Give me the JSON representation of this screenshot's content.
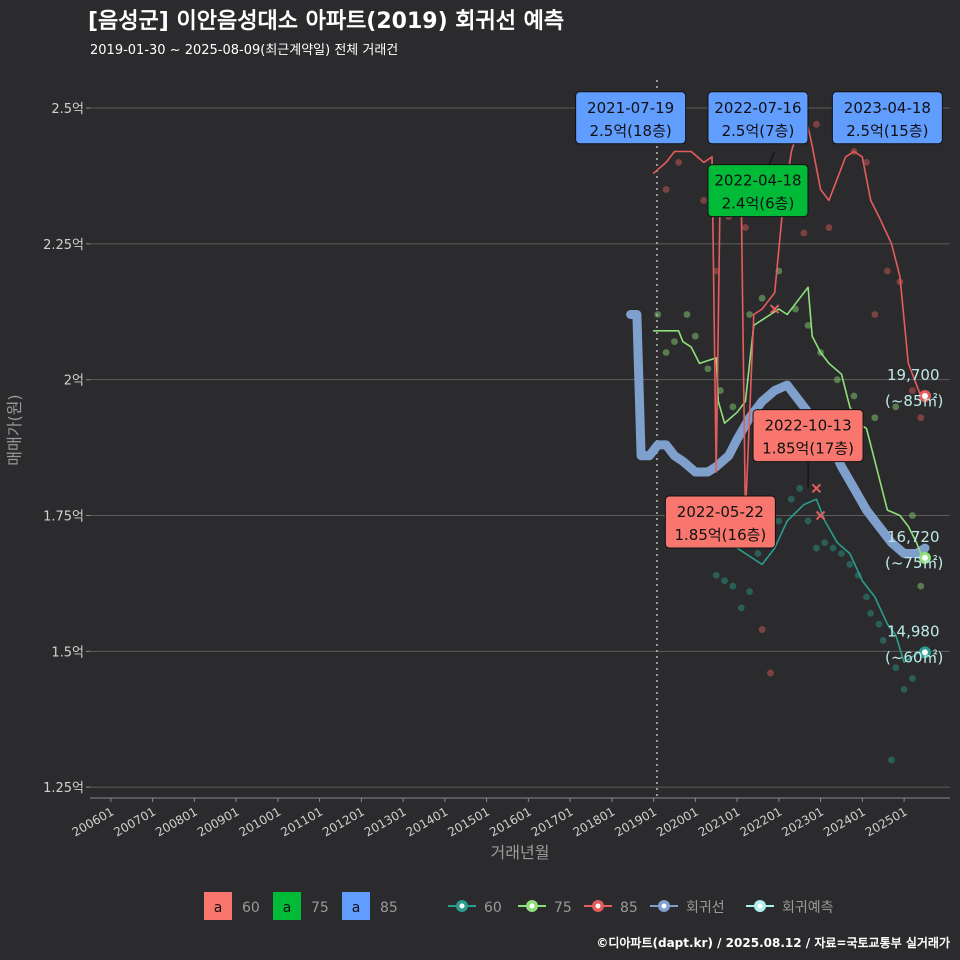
{
  "chart_data": {
    "type": "line",
    "title": "[음성군] 이안음성대소 아파트(2019) 회귀선 예측",
    "subtitle": "2019-01-30 ~ 2025-08-09(최근계약일) 전체 거래건",
    "xlabel": "거래년월",
    "ylabel": "매매가(원)",
    "x_ticks": [
      "200601",
      "200701",
      "200801",
      "200901",
      "201001",
      "201101",
      "201201",
      "201301",
      "201401",
      "201501",
      "201601",
      "201701",
      "201801",
      "201901",
      "202001",
      "202101",
      "202201",
      "202301",
      "202401",
      "202501"
    ],
    "y_ticks": [
      {
        "value": 1.25,
        "label": "1.25억"
      },
      {
        "value": 1.5,
        "label": "1.5억"
      },
      {
        "value": 1.75,
        "label": "1.75억"
      },
      {
        "value": 2.0,
        "label": "2억"
      },
      {
        "value": 2.25,
        "label": "2.25억"
      },
      {
        "value": 2.5,
        "label": "2.5억"
      }
    ],
    "ylim": [
      1.23,
      2.57
    ],
    "xlim": [
      2005.5,
      2026.1
    ],
    "vline_x": 2019.08,
    "series": [
      {
        "name": "60",
        "color": "#2a9d8f",
        "points": [
          [
            2019.9,
            1.72
          ],
          [
            2020.3,
            1.72
          ],
          [
            2020.6,
            1.7
          ],
          [
            2021.0,
            1.69
          ],
          [
            2021.4,
            1.67
          ],
          [
            2021.6,
            1.66
          ],
          [
            2021.9,
            1.69
          ],
          [
            2022.2,
            1.74
          ],
          [
            2022.6,
            1.77
          ],
          [
            2022.9,
            1.78
          ],
          [
            2023.1,
            1.74
          ],
          [
            2023.4,
            1.7
          ],
          [
            2023.7,
            1.68
          ],
          [
            2024.0,
            1.63
          ],
          [
            2024.3,
            1.6
          ],
          [
            2024.6,
            1.55
          ],
          [
            2024.8,
            1.53
          ],
          [
            2025.0,
            1.48
          ],
          [
            2025.2,
            1.49
          ],
          [
            2025.4,
            1.5
          ]
        ]
      },
      {
        "name": "75",
        "color": "#8ee07a",
        "points": [
          [
            2019.0,
            2.09
          ],
          [
            2019.6,
            2.09
          ],
          [
            2019.7,
            2.07
          ],
          [
            2019.9,
            2.06
          ],
          [
            2020.1,
            2.03
          ],
          [
            2020.5,
            2.04
          ],
          [
            2020.55,
            1.96
          ],
          [
            2020.7,
            1.92
          ],
          [
            2021.0,
            1.94
          ],
          [
            2021.2,
            1.96
          ],
          [
            2021.4,
            2.1
          ],
          [
            2021.8,
            2.12
          ],
          [
            2022.0,
            2.13
          ],
          [
            2022.2,
            2.12
          ],
          [
            2022.5,
            2.15
          ],
          [
            2022.7,
            2.17
          ],
          [
            2022.8,
            2.08
          ],
          [
            2023.0,
            2.05
          ],
          [
            2023.2,
            2.03
          ],
          [
            2023.5,
            2.01
          ],
          [
            2023.7,
            1.95
          ],
          [
            2023.9,
            1.92
          ],
          [
            2024.1,
            1.91
          ],
          [
            2024.3,
            1.85
          ],
          [
            2024.6,
            1.76
          ],
          [
            2024.9,
            1.75
          ],
          [
            2025.1,
            1.73
          ],
          [
            2025.3,
            1.7
          ],
          [
            2025.45,
            1.67
          ]
        ]
      },
      {
        "name": "85",
        "color": "#e35d5d",
        "points": [
          [
            2019.0,
            2.38
          ],
          [
            2019.3,
            2.4
          ],
          [
            2019.5,
            2.42
          ],
          [
            2019.9,
            2.42
          ],
          [
            2020.2,
            2.4
          ],
          [
            2020.4,
            2.41
          ],
          [
            2020.5,
            1.83
          ],
          [
            2020.6,
            2.38
          ],
          [
            2020.8,
            2.34
          ],
          [
            2021.1,
            2.33
          ],
          [
            2021.2,
            1.75
          ],
          [
            2021.4,
            2.12
          ],
          [
            2021.6,
            2.13
          ],
          [
            2021.9,
            2.16
          ],
          [
            2022.1,
            2.32
          ],
          [
            2022.3,
            2.42
          ],
          [
            2022.5,
            2.47
          ],
          [
            2022.6,
            2.5
          ],
          [
            2022.8,
            2.43
          ],
          [
            2023.0,
            2.35
          ],
          [
            2023.2,
            2.33
          ],
          [
            2023.4,
            2.37
          ],
          [
            2023.6,
            2.41
          ],
          [
            2023.8,
            2.42
          ],
          [
            2024.0,
            2.41
          ],
          [
            2024.2,
            2.33
          ],
          [
            2024.4,
            2.3
          ],
          [
            2024.7,
            2.25
          ],
          [
            2024.9,
            2.19
          ],
          [
            2025.1,
            2.03
          ],
          [
            2025.4,
            1.97
          ]
        ]
      },
      {
        "name": "회귀선",
        "color": "#7fa0cc",
        "points": [
          [
            2018.45,
            2.12
          ],
          [
            2018.6,
            2.12
          ],
          [
            2018.7,
            1.86
          ],
          [
            2018.9,
            1.86
          ],
          [
            2019.1,
            1.88
          ],
          [
            2019.3,
            1.88
          ],
          [
            2019.5,
            1.86
          ],
          [
            2019.7,
            1.85
          ],
          [
            2020.0,
            1.83
          ],
          [
            2020.3,
            1.83
          ],
          [
            2020.5,
            1.84
          ],
          [
            2020.8,
            1.86
          ],
          [
            2021.0,
            1.89
          ],
          [
            2021.3,
            1.93
          ],
          [
            2021.6,
            1.96
          ],
          [
            2021.9,
            1.98
          ],
          [
            2022.2,
            1.99
          ],
          [
            2022.5,
            1.96
          ],
          [
            2022.8,
            1.93
          ],
          [
            2023.2,
            1.89
          ],
          [
            2023.5,
            1.84
          ],
          [
            2023.8,
            1.8
          ],
          [
            2024.1,
            1.76
          ],
          [
            2024.4,
            1.73
          ],
          [
            2024.7,
            1.7
          ],
          [
            2025.0,
            1.68
          ],
          [
            2025.3,
            1.68
          ],
          [
            2025.5,
            1.69
          ]
        ]
      }
    ],
    "scatter": [
      {
        "name": "60",
        "color": "#2a9d8f",
        "points": [
          [
            2019.9,
            1.75
          ],
          [
            2020.2,
            1.72
          ],
          [
            2020.5,
            1.64
          ],
          [
            2020.7,
            1.63
          ],
          [
            2020.9,
            1.62
          ],
          [
            2021.1,
            1.58
          ],
          [
            2021.3,
            1.61
          ],
          [
            2021.5,
            1.68
          ],
          [
            2021.8,
            1.72
          ],
          [
            2022.0,
            1.74
          ],
          [
            2022.3,
            1.78
          ],
          [
            2022.5,
            1.8
          ],
          [
            2022.7,
            1.74
          ],
          [
            2022.9,
            1.69
          ],
          [
            2023.1,
            1.7
          ],
          [
            2023.3,
            1.69
          ],
          [
            2023.5,
            1.68
          ],
          [
            2023.7,
            1.66
          ],
          [
            2023.9,
            1.64
          ],
          [
            2024.1,
            1.6
          ],
          [
            2024.2,
            1.57
          ],
          [
            2024.4,
            1.55
          ],
          [
            2024.5,
            1.52
          ],
          [
            2024.7,
            1.3
          ],
          [
            2024.8,
            1.47
          ],
          [
            2025.0,
            1.43
          ],
          [
            2025.2,
            1.45
          ]
        ]
      },
      {
        "name": "75",
        "color": "#8ee07a",
        "points": [
          [
            2019.1,
            2.12
          ],
          [
            2019.3,
            2.05
          ],
          [
            2019.5,
            2.07
          ],
          [
            2019.8,
            2.12
          ],
          [
            2020.0,
            2.08
          ],
          [
            2020.3,
            2.02
          ],
          [
            2020.6,
            1.98
          ],
          [
            2020.9,
            1.95
          ],
          [
            2021.3,
            2.12
          ],
          [
            2021.6,
            2.15
          ],
          [
            2022.0,
            2.2
          ],
          [
            2022.4,
            2.13
          ],
          [
            2022.7,
            2.1
          ],
          [
            2023.0,
            2.05
          ],
          [
            2023.4,
            2.0
          ],
          [
            2023.8,
            1.97
          ],
          [
            2024.3,
            1.93
          ],
          [
            2024.8,
            1.95
          ],
          [
            2025.2,
            1.75
          ],
          [
            2025.4,
            1.62
          ]
        ]
      },
      {
        "name": "85",
        "color": "#e35d5d",
        "points": [
          [
            2019.3,
            2.35
          ],
          [
            2019.6,
            2.4
          ],
          [
            2020.2,
            2.33
          ],
          [
            2020.5,
            2.2
          ],
          [
            2020.8,
            2.3
          ],
          [
            2021.2,
            2.28
          ],
          [
            2021.6,
            1.54
          ],
          [
            2021.8,
            1.46
          ],
          [
            2022.0,
            2.45
          ],
          [
            2022.3,
            2.35
          ],
          [
            2022.6,
            2.27
          ],
          [
            2022.9,
            2.47
          ],
          [
            2023.2,
            2.28
          ],
          [
            2023.5,
            2.47
          ],
          [
            2023.8,
            2.42
          ],
          [
            2024.1,
            2.4
          ],
          [
            2024.3,
            2.12
          ],
          [
            2024.6,
            2.2
          ],
          [
            2024.9,
            2.18
          ],
          [
            2025.2,
            1.98
          ],
          [
            2025.4,
            1.93
          ]
        ]
      }
    ],
    "end_labels": [
      {
        "series": "85",
        "x": 2025.5,
        "y": 1.97,
        "value": "19,700",
        "area": "(~85㎡)"
      },
      {
        "series": "75",
        "x": 2025.5,
        "y": 1.672,
        "value": "16,720",
        "area": "(~75㎡)"
      },
      {
        "series": "60",
        "x": 2025.5,
        "y": 1.498,
        "value": "14,980",
        "area": "(~60㎡)"
      }
    ],
    "annotations": [
      {
        "date": "2021-07-19",
        "price": "2.5억(18층)",
        "color": "#619cff",
        "x": 2018.45,
        "y": 2.482
      },
      {
        "date": "2022-07-16",
        "price": "2.5억(7층)",
        "color": "#619cff",
        "x": 2021.5,
        "y": 2.482
      },
      {
        "date": "2023-04-18",
        "price": "2.5억(15층)",
        "color": "#619cff",
        "x": 2024.6,
        "y": 2.482
      },
      {
        "date": "2022-04-18",
        "price": "2.4억(6층)",
        "color": "#00ba38",
        "x": 2021.5,
        "y": 2.348
      },
      {
        "date": "2022-10-13",
        "price": "1.85억(17층)",
        "color": "#f8766d",
        "x": 2022.7,
        "y": 1.897
      },
      {
        "date": "2022-05-22",
        "price": "1.85억(16층)",
        "color": "#f8766d",
        "x": 2020.6,
        "y": 1.738
      }
    ],
    "legend_boxes": [
      {
        "label": "60",
        "color": "#f8766d",
        "key": "a"
      },
      {
        "label": "75",
        "color": "#00ba38",
        "key": "a"
      },
      {
        "label": "85",
        "color": "#619cff",
        "key": "a"
      }
    ],
    "legend_lines": [
      {
        "label": "60",
        "color": "#2a9d8f"
      },
      {
        "label": "75",
        "color": "#8ee07a"
      },
      {
        "label": "85",
        "color": "#e35d5d"
      },
      {
        "label": "회귀선",
        "color": "#7fa0cc"
      },
      {
        "label": "회귀예측",
        "color": "#aef0ee"
      }
    ]
  },
  "caption": "©디아파트(dapt.kr) / 2025.08.12 / 자료=국토교통부 실거래가"
}
